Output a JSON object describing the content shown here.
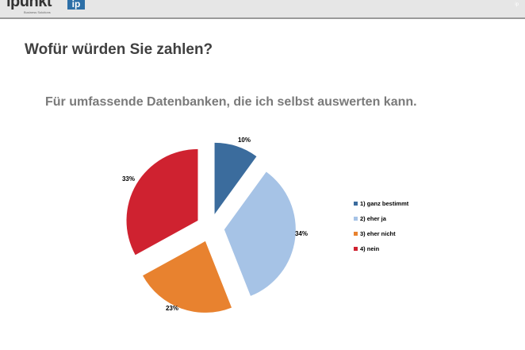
{
  "header": {
    "logo_text": "ipunkt",
    "logo_subtext": "Business Solutions",
    "logo_mark": "ip"
  },
  "page_title": "Wofür würden Sie zahlen?",
  "subtitle": "Für umfassende Datenbanken, die ich selbst auswerten kann.",
  "chart_data": {
    "type": "pie",
    "title": "",
    "categories": [
      "1) ganz bestimmt",
      "2) eher ja",
      "3) eher nicht",
      "4) nein"
    ],
    "values": [
      10,
      34,
      23,
      33
    ],
    "labels": [
      "10%",
      "34%",
      "23%",
      "33%"
    ],
    "colors": [
      "#3b6c9d",
      "#a6c3e6",
      "#e8822f",
      "#cf2230"
    ],
    "exploded": true,
    "legend": "right"
  }
}
